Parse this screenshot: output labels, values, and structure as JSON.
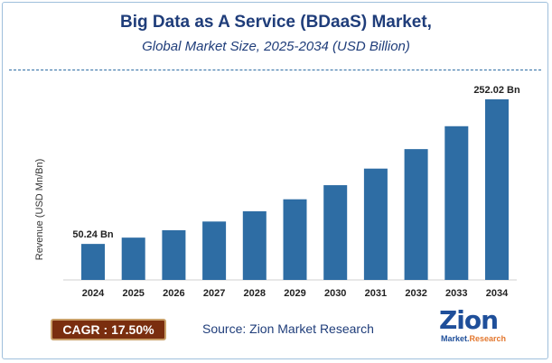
{
  "chart_data": {
    "type": "bar",
    "title": "Big Data as A Service (BDaaS) Market,",
    "subtitle": "Global Market Size, 2025-2034 (USD Billion)",
    "xlabel": "",
    "ylabel": "Revenue (USD Mn/Bn)",
    "categories": [
      "2024",
      "2025",
      "2026",
      "2027",
      "2028",
      "2029",
      "2030",
      "2031",
      "2032",
      "2033",
      "2034"
    ],
    "values": [
      50.24,
      59.03,
      69.36,
      81.5,
      95.77,
      112.53,
      132.22,
      155.36,
      182.55,
      214.5,
      252.02
    ],
    "ylim": [
      0,
      252.02
    ],
    "data_labels": [
      {
        "category": "2024",
        "text": "50.24 Bn"
      },
      {
        "category": "2034",
        "text": "252.02 Bn"
      }
    ],
    "bar_color": "#2e6da4",
    "grid": false
  },
  "footer": {
    "cagr_text": "CAGR : 17.50%",
    "source_text": "Source: Zion Market Research",
    "logo_main": "Zion",
    "logo_sub_1": "Market.",
    "logo_sub_2": "Research"
  }
}
